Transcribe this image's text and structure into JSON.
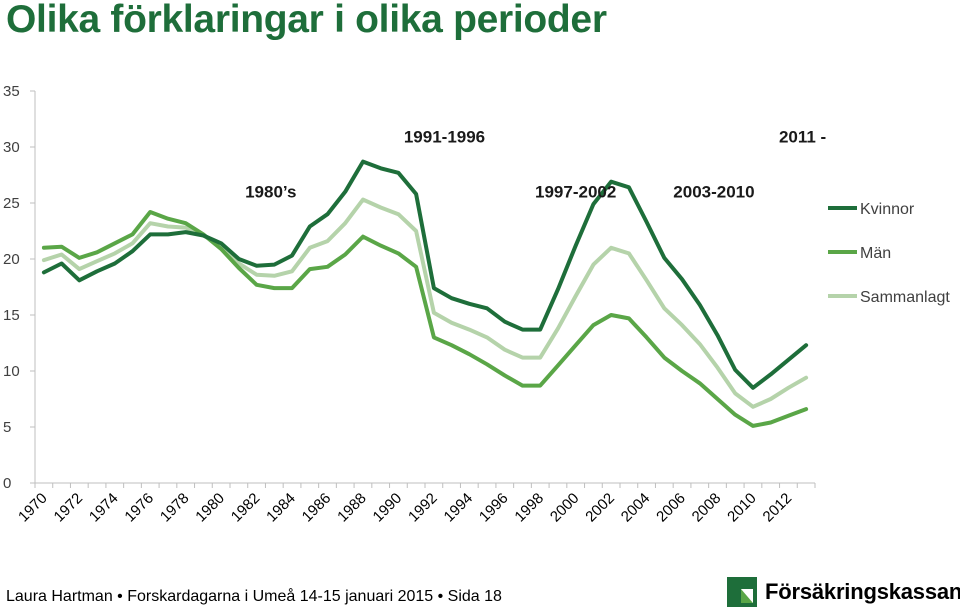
{
  "slide": {
    "title": "Olika förklaringar i olika perioder",
    "footer": "Laura Hartman • Forskardagarna i Umeå 14-15 januari 2015 • Sida 18",
    "logo_text": "Försäkringskassan"
  },
  "colors": {
    "title": "#1e6e3a",
    "kvinnor": "#1e6e3a",
    "man": "#5aa647",
    "sammanlagt": "#b5d3aa",
    "axis": "#bfbfbf",
    "logo": "#1e6e3a"
  },
  "chart_data": {
    "type": "line",
    "x": [
      1970,
      1971,
      1972,
      1973,
      1974,
      1975,
      1976,
      1977,
      1978,
      1979,
      1980,
      1981,
      1982,
      1983,
      1984,
      1985,
      1986,
      1987,
      1988,
      1989,
      1990,
      1991,
      1992,
      1993,
      1994,
      1995,
      1996,
      1997,
      1998,
      1999,
      2000,
      2001,
      2002,
      2003,
      2004,
      2005,
      2006,
      2007,
      2008,
      2009,
      2010,
      2011,
      2012,
      2013
    ],
    "x_tick_labels": [
      "1970",
      "1972",
      "1974",
      "1976",
      "1978",
      "1980",
      "1982",
      "1984",
      "1986",
      "1988",
      "1990",
      "1992",
      "1994",
      "1996",
      "1998",
      "2000",
      "2002",
      "2004",
      "2006",
      "2008",
      "2010",
      "2012"
    ],
    "ylim": [
      0,
      35
    ],
    "y_ticks": [
      "0",
      "5",
      "10",
      "15",
      "20",
      "25",
      "30",
      "35"
    ],
    "grid": false,
    "legend_position": "right",
    "series": [
      {
        "name": "Kvinnor",
        "values": [
          18.8,
          19.6,
          18.1,
          18.9,
          19.6,
          20.7,
          22.2,
          22.2,
          22.4,
          22.1,
          21.4,
          20.0,
          19.4,
          19.5,
          20.3,
          22.9,
          24.0,
          26.0,
          28.7,
          28.1,
          27.7,
          25.8,
          17.4,
          16.5,
          16.0,
          15.6,
          14.4,
          13.7,
          13.7,
          17.3,
          21.2,
          24.9,
          26.9,
          26.4,
          23.3,
          20.1,
          18.2,
          15.9,
          13.2,
          10.1,
          8.5,
          9.7,
          11.0,
          12.3
        ]
      },
      {
        "name": "Män",
        "values": [
          21.0,
          21.1,
          20.1,
          20.6,
          21.4,
          22.2,
          24.2,
          23.6,
          23.2,
          22.2,
          20.9,
          19.2,
          17.7,
          17.4,
          17.4,
          19.1,
          19.3,
          20.4,
          22.0,
          21.2,
          20.5,
          19.3,
          13.0,
          12.3,
          11.5,
          10.6,
          9.6,
          8.7,
          8.7,
          10.5,
          12.3,
          14.1,
          15.0,
          14.7,
          13.0,
          11.2,
          10.0,
          8.9,
          7.5,
          6.1,
          5.1,
          5.4,
          6.0,
          6.6
        ]
      },
      {
        "name": "Sammanlagt",
        "values": [
          19.9,
          20.4,
          19.1,
          19.8,
          20.5,
          21.4,
          23.2,
          22.9,
          22.8,
          22.1,
          21.2,
          19.6,
          18.6,
          18.5,
          18.9,
          21.0,
          21.6,
          23.2,
          25.3,
          24.6,
          24.0,
          22.5,
          15.2,
          14.3,
          13.7,
          13.0,
          11.9,
          11.2,
          11.2,
          13.8,
          16.7,
          19.5,
          21.0,
          20.5,
          18.1,
          15.6,
          14.1,
          12.4,
          10.3,
          8.0,
          6.8,
          7.5,
          8.5,
          9.4
        ]
      }
    ],
    "annotations": [
      {
        "text": "1980’s",
        "x": 1982.8,
        "y": 25.5
      },
      {
        "text": "1991-1996",
        "x": 1992.6,
        "y": 30.4
      },
      {
        "text": "1997-2002",
        "x": 2000.0,
        "y": 25.5
      },
      {
        "text": "2003-2010",
        "x": 2007.8,
        "y": 25.5
      },
      {
        "text": "2011 -",
        "x": 2012.8,
        "y": 30.4
      }
    ]
  }
}
